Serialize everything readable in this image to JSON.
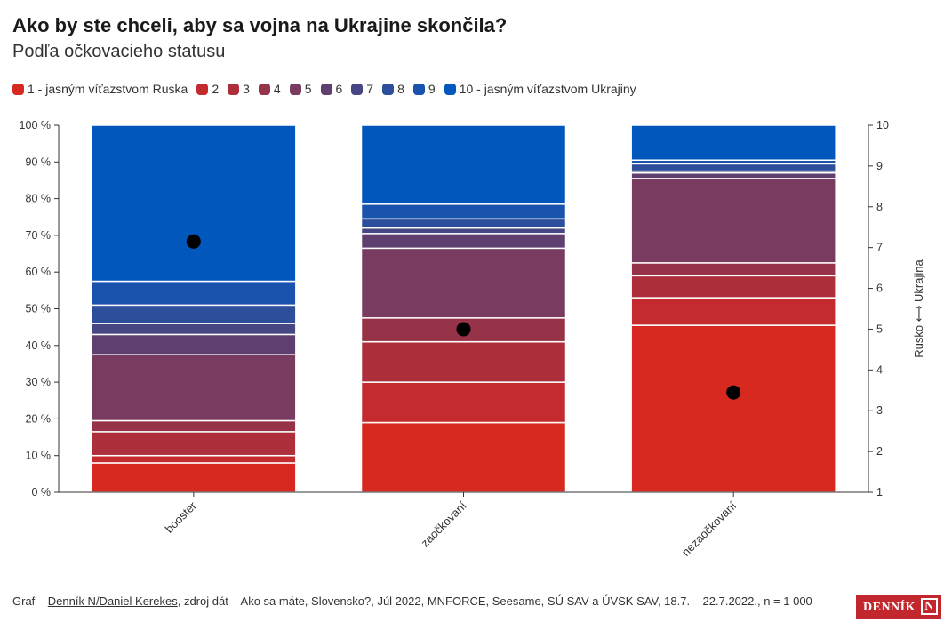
{
  "title": "Ako by ste chceli, aby sa vojna na Ukrajine skončila?",
  "subtitle": "Podľa očkovacieho statusu",
  "legend": [
    {
      "label": "1 - jasným víťazstvom Ruska",
      "color": "#d7291f"
    },
    {
      "label": "2",
      "color": "#c42b2e"
    },
    {
      "label": "3",
      "color": "#ae2f3c"
    },
    {
      "label": "4",
      "color": "#973349"
    },
    {
      "label": "5",
      "color": "#7a3b61"
    },
    {
      "label": "6",
      "color": "#5f3f70"
    },
    {
      "label": "7",
      "color": "#454682"
    },
    {
      "label": "8",
      "color": "#2d4e9b"
    },
    {
      "label": "9",
      "color": "#1a53ae"
    },
    {
      "label": "10 - jasným víťazstvom Ukrajiny",
      "color": "#0157bb"
    }
  ],
  "chart_data": {
    "type": "bar",
    "stacked": true,
    "categories": [
      "booster",
      "zaočkovaní",
      "nezaočkovaní"
    ],
    "series": [
      {
        "name": "1 - jasným víťazstvom Ruska",
        "values": [
          8.0,
          19.0,
          45.5
        ]
      },
      {
        "name": "2",
        "values": [
          2.0,
          11.0,
          7.5
        ]
      },
      {
        "name": "3",
        "values": [
          6.5,
          11.0,
          6.0
        ]
      },
      {
        "name": "4",
        "values": [
          3.0,
          6.5,
          3.5
        ]
      },
      {
        "name": "5",
        "values": [
          18.0,
          19.0,
          23.0
        ]
      },
      {
        "name": "6",
        "values": [
          5.5,
          4.0,
          1.5
        ]
      },
      {
        "name": "7",
        "values": [
          3.0,
          1.5,
          0.5
        ]
      },
      {
        "name": "8",
        "values": [
          5.0,
          2.5,
          2.0
        ]
      },
      {
        "name": "9",
        "values": [
          6.5,
          4.0,
          1.0
        ]
      },
      {
        "name": "10 - jasným víťazstvom Ukrajiny",
        "values": [
          42.5,
          21.5,
          9.5
        ]
      }
    ],
    "mean_scores": [
      7.15,
      5.0,
      3.45
    ],
    "left_axis": {
      "ylim": [
        0,
        100
      ],
      "ticks": [
        "0 %",
        "10 %",
        "20 %",
        "30 %",
        "40 %",
        "50 %",
        "60 %",
        "70 %",
        "80 %",
        "90 %",
        "100 %"
      ]
    },
    "right_axis": {
      "ylim": [
        1,
        10
      ],
      "ticks": [
        "1",
        "2",
        "3",
        "4",
        "5",
        "6",
        "7",
        "8",
        "9",
        "10"
      ],
      "label": "Rusko ⟷ Ukrajina"
    }
  },
  "footer": {
    "prefix": "Graf – ",
    "link": "Denník N/Daniel Kerekes",
    "rest": ", zdroj dát – Ako sa máte, Slovensko?, Júl 2022, MNFORCE, Seesame, SÚ SAV a ÚVSK SAV, 18.7. – 22.7.2022., n = 1 000"
  },
  "logo": {
    "text": "DENNÍK",
    "letter": "N"
  }
}
